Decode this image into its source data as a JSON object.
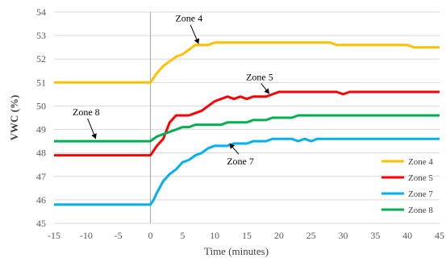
{
  "chart_data": {
    "type": "line",
    "xlabel": "Time (minutes)",
    "ylabel": "VWC (%)",
    "xlim": [
      -15,
      45
    ],
    "ylim": [
      45,
      54
    ],
    "x_ticks": [
      "-15",
      "-10",
      "-5",
      "0",
      "5",
      "10",
      "15",
      "20",
      "25",
      "30",
      "35",
      "40",
      "45"
    ],
    "y_ticks": [
      "45",
      "46",
      "47",
      "48",
      "49",
      "50",
      "51",
      "52",
      "53",
      "54"
    ],
    "grid": "horizontal",
    "legend_position": "bottom-right",
    "vertical_marker_x": 0,
    "series": [
      {
        "name": "Zone 4",
        "color": "#ffc000",
        "points": [
          [
            -15,
            51.0
          ],
          [
            0,
            51.0
          ],
          [
            0.5,
            51.2
          ],
          [
            1,
            51.4
          ],
          [
            2,
            51.7
          ],
          [
            3,
            51.9
          ],
          [
            4,
            52.1
          ],
          [
            5,
            52.2
          ],
          [
            6,
            52.4
          ],
          [
            7,
            52.6
          ],
          [
            9,
            52.6
          ],
          [
            10,
            52.7
          ],
          [
            28,
            52.7
          ],
          [
            29,
            52.6
          ],
          [
            40,
            52.6
          ],
          [
            41,
            52.5
          ],
          [
            45,
            52.5
          ]
        ]
      },
      {
        "name": "Zone 5",
        "color": "#ff0000",
        "points": [
          [
            -15,
            47.9
          ],
          [
            0,
            47.9
          ],
          [
            0.5,
            48.1
          ],
          [
            1,
            48.3
          ],
          [
            2,
            48.6
          ],
          [
            3,
            49.3
          ],
          [
            4,
            49.6
          ],
          [
            5,
            49.6
          ],
          [
            6,
            49.6
          ],
          [
            7,
            49.7
          ],
          [
            8,
            49.8
          ],
          [
            9,
            50.0
          ],
          [
            10,
            50.2
          ],
          [
            11,
            50.3
          ],
          [
            12,
            50.4
          ],
          [
            13,
            50.3
          ],
          [
            14,
            50.4
          ],
          [
            15,
            50.3
          ],
          [
            16,
            50.4
          ],
          [
            18,
            50.4
          ],
          [
            19,
            50.5
          ],
          [
            20,
            50.6
          ],
          [
            29,
            50.6
          ],
          [
            30,
            50.5
          ],
          [
            31,
            50.6
          ],
          [
            45,
            50.6
          ]
        ]
      },
      {
        "name": "Zone 7",
        "color": "#00b0f0",
        "points": [
          [
            -15,
            45.8
          ],
          [
            0,
            45.8
          ],
          [
            0.5,
            46.0
          ],
          [
            1,
            46.3
          ],
          [
            2,
            46.8
          ],
          [
            3,
            47.1
          ],
          [
            4,
            47.3
          ],
          [
            5,
            47.6
          ],
          [
            6,
            47.7
          ],
          [
            7,
            47.9
          ],
          [
            8,
            48.0
          ],
          [
            9,
            48.2
          ],
          [
            10,
            48.3
          ],
          [
            12,
            48.3
          ],
          [
            13,
            48.4
          ],
          [
            15,
            48.4
          ],
          [
            16,
            48.5
          ],
          [
            18,
            48.5
          ],
          [
            19,
            48.6
          ],
          [
            22,
            48.6
          ],
          [
            23,
            48.5
          ],
          [
            24,
            48.6
          ],
          [
            25,
            48.5
          ],
          [
            26,
            48.6
          ],
          [
            45,
            48.6
          ]
        ]
      },
      {
        "name": "Zone 8",
        "color": "#00b050",
        "points": [
          [
            -15,
            48.5
          ],
          [
            0,
            48.5
          ],
          [
            1,
            48.7
          ],
          [
            3,
            48.9
          ],
          [
            4,
            49.0
          ],
          [
            5,
            49.1
          ],
          [
            6,
            49.1
          ],
          [
            7,
            49.2
          ],
          [
            11,
            49.2
          ],
          [
            12,
            49.3
          ],
          [
            15,
            49.3
          ],
          [
            16,
            49.4
          ],
          [
            18,
            49.4
          ],
          [
            19,
            49.5
          ],
          [
            22,
            49.5
          ],
          [
            23,
            49.6
          ],
          [
            45,
            49.6
          ]
        ]
      }
    ],
    "annotations": [
      {
        "text": "Zone 4",
        "label_x": 6,
        "label_y": 53.6,
        "arrow_to_x": 7.5,
        "arrow_to_y": 52.65
      },
      {
        "text": "Zone 5",
        "label_x": 17,
        "label_y": 51.1,
        "arrow_to_x": 18.5,
        "arrow_to_y": 50.52
      },
      {
        "text": "Zone 8",
        "label_x": -10,
        "label_y": 49.6,
        "arrow_to_x": -8.5,
        "arrow_to_y": 48.6
      },
      {
        "text": "Zone 7",
        "label_x": 14,
        "label_y": 47.5,
        "arrow_to_x": 12.3,
        "arrow_to_y": 48.4
      }
    ]
  }
}
